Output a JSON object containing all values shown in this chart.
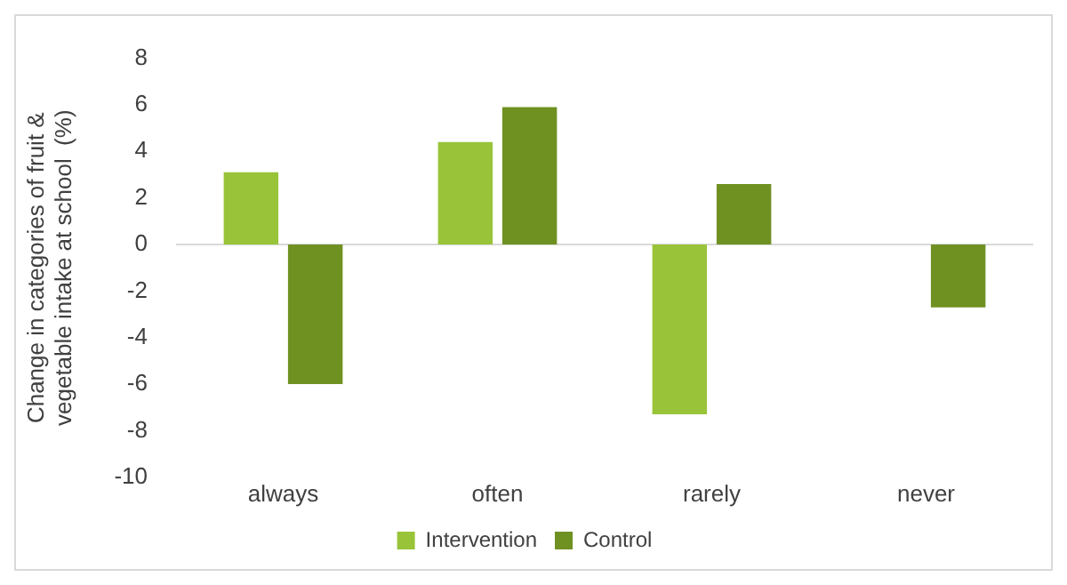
{
  "chart_data": {
    "type": "bar",
    "ylabel": "Change in categories of fruit & vegetable intake at school  (%)",
    "categories": [
      "always",
      "often",
      "rarely",
      "never"
    ],
    "series": [
      {
        "name": "Intervention",
        "color": "#99c43a",
        "values": [
          3.1,
          4.4,
          -7.3,
          0
        ]
      },
      {
        "name": "Control",
        "color": "#6f9122",
        "values": [
          -6.0,
          5.9,
          2.6,
          -2.7
        ]
      }
    ],
    "ylim": [
      -10,
      8
    ],
    "yticks": [
      -10,
      -8,
      -6,
      -4,
      -2,
      0,
      2,
      4,
      6,
      8
    ],
    "grid": false,
    "ref_lines": [
      {
        "axis": "y",
        "value": 0,
        "color": "#d9d9d9"
      }
    ],
    "legend": "bottom"
  }
}
